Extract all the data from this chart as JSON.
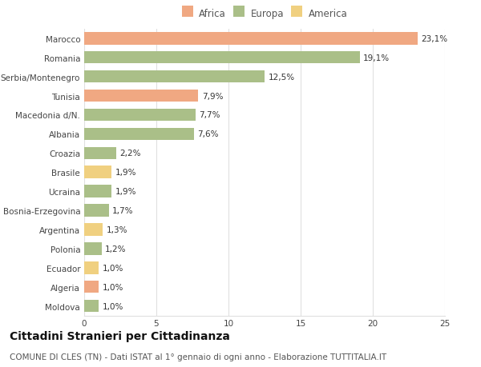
{
  "categories": [
    "Marocco",
    "Romania",
    "Serbia/Montenegro",
    "Tunisia",
    "Macedonia d/N.",
    "Albania",
    "Croazia",
    "Brasile",
    "Ucraina",
    "Bosnia-Erzegovina",
    "Argentina",
    "Polonia",
    "Ecuador",
    "Algeria",
    "Moldova"
  ],
  "values": [
    23.1,
    19.1,
    12.5,
    7.9,
    7.7,
    7.6,
    2.2,
    1.9,
    1.9,
    1.7,
    1.3,
    1.2,
    1.0,
    1.0,
    1.0
  ],
  "labels": [
    "23,1%",
    "19,1%",
    "12,5%",
    "7,9%",
    "7,7%",
    "7,6%",
    "2,2%",
    "1,9%",
    "1,9%",
    "1,7%",
    "1,3%",
    "1,2%",
    "1,0%",
    "1,0%",
    "1,0%"
  ],
  "colors": [
    "#F0A882",
    "#AABF88",
    "#AABF88",
    "#F0A882",
    "#AABF88",
    "#AABF88",
    "#AABF88",
    "#F0D080",
    "#AABF88",
    "#AABF88",
    "#F0D080",
    "#AABF88",
    "#F0D080",
    "#F0A882",
    "#AABF88"
  ],
  "legend_labels": [
    "Africa",
    "Europa",
    "America"
  ],
  "legend_colors": [
    "#F0A882",
    "#AABF88",
    "#F0D080"
  ],
  "title": "Cittadini Stranieri per Cittadinanza",
  "subtitle": "COMUNE DI CLES (TN) - Dati ISTAT al 1° gennaio di ogni anno - Elaborazione TUTTITALIA.IT",
  "xlim": [
    0,
    25
  ],
  "xticks": [
    0,
    5,
    10,
    15,
    20,
    25
  ],
  "background_color": "#ffffff",
  "grid_color": "#e0e0e0",
  "bar_height": 0.65,
  "title_fontsize": 10,
  "subtitle_fontsize": 7.5,
  "label_fontsize": 7.5,
  "tick_fontsize": 7.5,
  "legend_fontsize": 8.5
}
